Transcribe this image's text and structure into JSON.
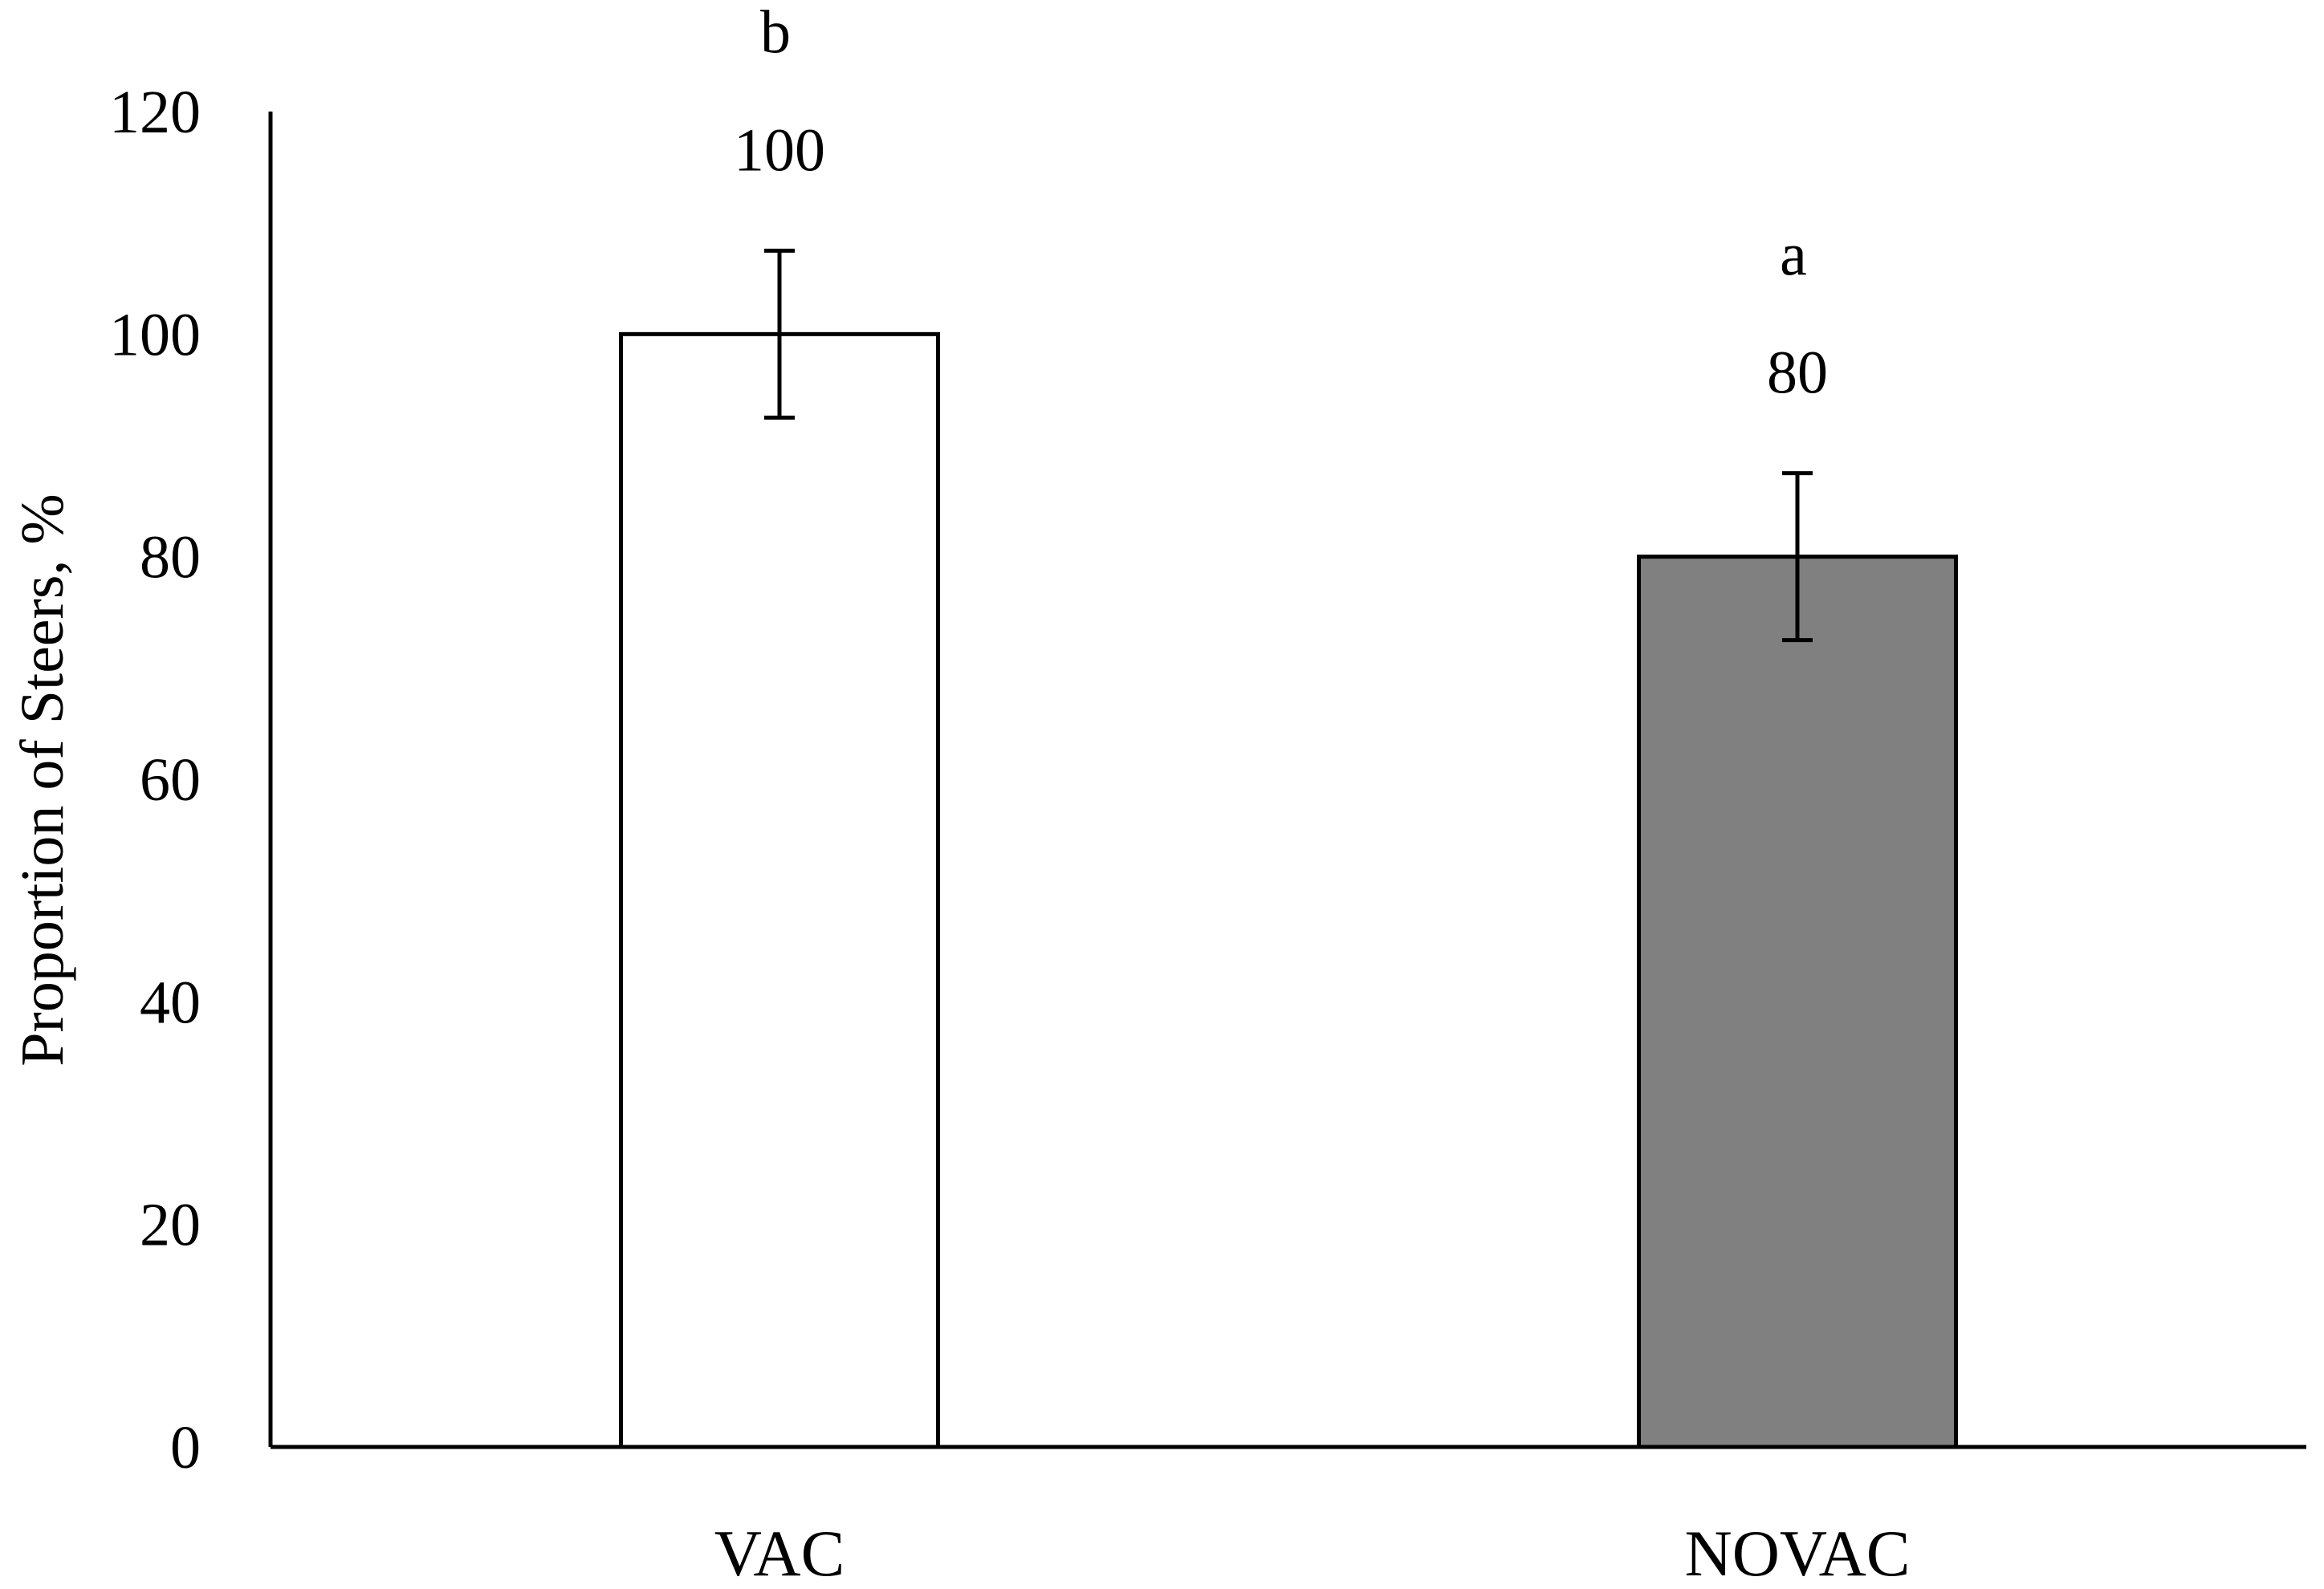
{
  "chart_data": {
    "type": "bar",
    "title": "",
    "xlabel": "",
    "ylabel": "Proportion of Steers, %",
    "ylim": [
      0,
      120
    ],
    "yticks": [
      0,
      20,
      40,
      60,
      80,
      100,
      120
    ],
    "grid": false,
    "legend": "none",
    "categories": [
      "VAC",
      "NOVAC"
    ],
    "values": [
      100,
      80
    ],
    "error": [
      7.5,
      7.5
    ],
    "value_labels": [
      "100",
      "80"
    ],
    "significance_letters": [
      "b",
      "a"
    ],
    "bar_fill_colors": [
      "#ffffff",
      "#808080"
    ],
    "bar_stroke_color": "#000000"
  }
}
